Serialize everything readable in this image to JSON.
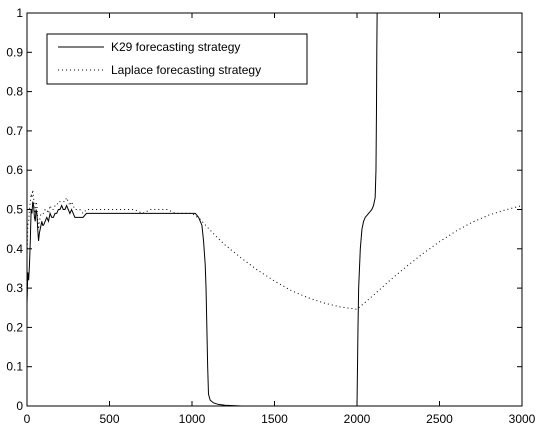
{
  "chart_data": {
    "type": "line",
    "title": "",
    "xlabel": "",
    "ylabel": "",
    "xlim": [
      0,
      3000
    ],
    "ylim": [
      0,
      1
    ],
    "xticks": [
      0,
      500,
      1000,
      1500,
      2000,
      2500,
      3000
    ],
    "yticks": [
      0,
      0.1,
      0.2,
      0.3,
      0.4,
      0.5,
      0.6,
      0.7,
      0.8,
      0.9,
      1
    ],
    "xtick_labels": [
      "0",
      "500",
      "1000",
      "1500",
      "2000",
      "2500",
      "3000"
    ],
    "ytick_labels": [
      "0",
      "0.1",
      "0.2",
      "0.3",
      "0.4",
      "0.5",
      "0.6",
      "0.7",
      "0.8",
      "0.9",
      "1"
    ],
    "grid": false,
    "legend": {
      "placement": "top-left",
      "boxed": true
    },
    "series": [
      {
        "name": "K29 forecasting strategy",
        "style": "solid",
        "color": "#000000",
        "x": [
          0,
          5,
          10,
          15,
          20,
          25,
          30,
          35,
          40,
          45,
          50,
          55,
          60,
          65,
          70,
          75,
          80,
          85,
          90,
          95,
          100,
          110,
          120,
          130,
          140,
          150,
          160,
          170,
          180,
          190,
          200,
          210,
          220,
          230,
          240,
          250,
          260,
          270,
          280,
          290,
          300,
          320,
          340,
          360,
          380,
          400,
          450,
          500,
          550,
          600,
          650,
          700,
          750,
          800,
          850,
          900,
          950,
          1000,
          1020,
          1040,
          1050,
          1060,
          1070,
          1080,
          1085,
          1090,
          1095,
          1100,
          1110,
          1130,
          1160,
          1200,
          1250,
          1300,
          2000,
          2003,
          2006,
          2010,
          2020,
          2030,
          2040,
          2050,
          2060,
          2070,
          2080,
          2090,
          2100,
          2110,
          2115,
          2118,
          2120,
          2122
        ],
        "y": [
          0.26,
          0.34,
          0.32,
          0.36,
          0.42,
          0.5,
          0.49,
          0.52,
          0.51,
          0.48,
          0.47,
          0.5,
          0.49,
          0.45,
          0.42,
          0.44,
          0.45,
          0.46,
          0.47,
          0.46,
          0.46,
          0.47,
          0.48,
          0.47,
          0.49,
          0.48,
          0.48,
          0.49,
          0.49,
          0.5,
          0.5,
          0.51,
          0.5,
          0.5,
          0.51,
          0.5,
          0.49,
          0.5,
          0.49,
          0.48,
          0.48,
          0.48,
          0.48,
          0.49,
          0.49,
          0.49,
          0.49,
          0.49,
          0.49,
          0.49,
          0.49,
          0.49,
          0.49,
          0.49,
          0.49,
          0.49,
          0.49,
          0.49,
          0.49,
          0.48,
          0.47,
          0.46,
          0.42,
          0.36,
          0.3,
          0.2,
          0.1,
          0.03,
          0.015,
          0.008,
          0.004,
          0.002,
          0.001,
          0.0,
          0.0,
          0.1,
          0.2,
          0.3,
          0.4,
          0.45,
          0.47,
          0.48,
          0.485,
          0.49,
          0.495,
          0.5,
          0.51,
          0.53,
          0.6,
          0.75,
          0.9,
          1.0
        ]
      },
      {
        "name": "Laplace forecasting strategy",
        "style": "dotted",
        "color": "#000000",
        "x": [
          0,
          5,
          10,
          15,
          20,
          25,
          30,
          35,
          40,
          45,
          50,
          55,
          60,
          65,
          70,
          75,
          80,
          85,
          90,
          95,
          100,
          110,
          120,
          130,
          140,
          150,
          160,
          170,
          180,
          190,
          200,
          210,
          220,
          230,
          240,
          250,
          260,
          270,
          280,
          290,
          300,
          320,
          340,
          360,
          380,
          400,
          450,
          500,
          550,
          600,
          650,
          700,
          750,
          800,
          850,
          900,
          950,
          1000,
          1050,
          1100,
          1150,
          1200,
          1300,
          1400,
          1500,
          1600,
          1700,
          1800,
          1900,
          2000,
          2100,
          2200,
          2300,
          2400,
          2500,
          2600,
          2700,
          2800,
          2900,
          3000
        ],
        "y": [
          0.38,
          0.46,
          0.47,
          0.5,
          0.52,
          0.54,
          0.53,
          0.55,
          0.53,
          0.5,
          0.49,
          0.52,
          0.51,
          0.47,
          0.45,
          0.47,
          0.48,
          0.49,
          0.49,
          0.49,
          0.49,
          0.5,
          0.5,
          0.49,
          0.51,
          0.5,
          0.5,
          0.51,
          0.51,
          0.52,
          0.52,
          0.52,
          0.52,
          0.52,
          0.53,
          0.52,
          0.51,
          0.52,
          0.51,
          0.5,
          0.5,
          0.5,
          0.49,
          0.5,
          0.5,
          0.5,
          0.5,
          0.5,
          0.5,
          0.5,
          0.5,
          0.49,
          0.5,
          0.5,
          0.5,
          0.49,
          0.49,
          0.49,
          0.475,
          0.452,
          0.43,
          0.41,
          0.376,
          0.345,
          0.318,
          0.294,
          0.276,
          0.262,
          0.252,
          0.246,
          0.282,
          0.32,
          0.355,
          0.388,
          0.418,
          0.445,
          0.468,
          0.486,
          0.499,
          0.51
        ]
      }
    ]
  }
}
